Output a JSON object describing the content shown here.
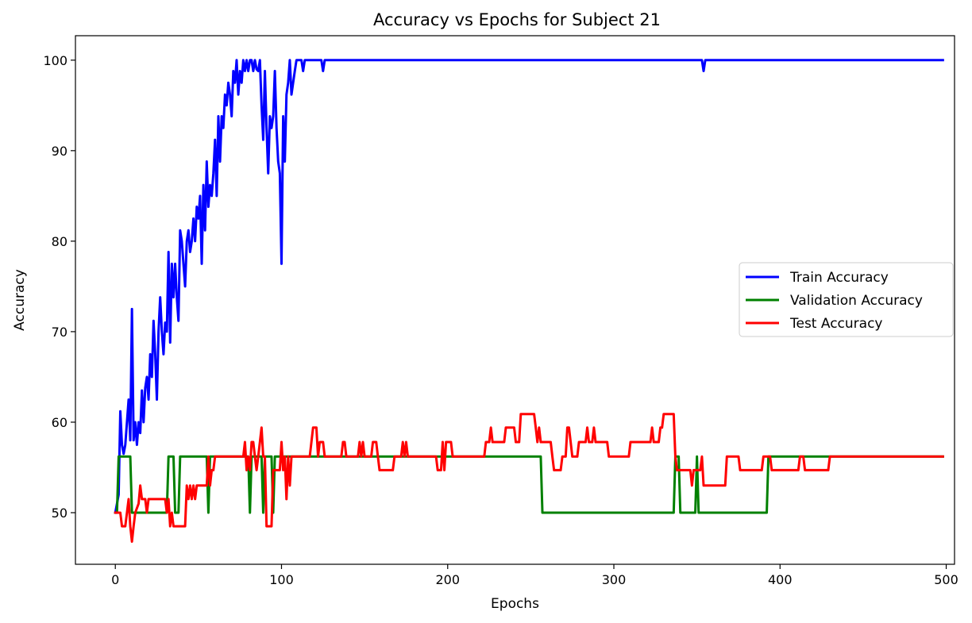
{
  "chart_data": {
    "type": "line",
    "title": "Accuracy vs Epochs for Subject 21",
    "xlabel": "Epochs",
    "ylabel": "Accuracy",
    "xlim": [
      -24,
      505
    ],
    "ylim": [
      44.3,
      102.7
    ],
    "xticks": [
      0,
      100,
      200,
      300,
      400,
      500
    ],
    "yticks": [
      50,
      60,
      70,
      80,
      90,
      100
    ],
    "grid": false,
    "legend_position": "center-right",
    "series": [
      {
        "name": "Train Accuracy",
        "color": "#0000ff",
        "points": [
          [
            0,
            50
          ],
          [
            2,
            52
          ],
          [
            3,
            61.2
          ],
          [
            4,
            57.5
          ],
          [
            5,
            56.5
          ],
          [
            6,
            57.5
          ],
          [
            7,
            60
          ],
          [
            8,
            62.5
          ],
          [
            9,
            58
          ],
          [
            10,
            72.5
          ],
          [
            11,
            58
          ],
          [
            12,
            60
          ],
          [
            13,
            57.5
          ],
          [
            14,
            60
          ],
          [
            15,
            58.8
          ],
          [
            16,
            63.5
          ],
          [
            17,
            60
          ],
          [
            18,
            63.8
          ],
          [
            19,
            65
          ],
          [
            20,
            62.5
          ],
          [
            21,
            67.5
          ],
          [
            22,
            65
          ],
          [
            23,
            71.2
          ],
          [
            24,
            67.5
          ],
          [
            25,
            62.5
          ],
          [
            26,
            70
          ],
          [
            27,
            73.8
          ],
          [
            28,
            70
          ],
          [
            29,
            67.5
          ],
          [
            30,
            71
          ],
          [
            31,
            70
          ],
          [
            32,
            78.8
          ],
          [
            33,
            68.8
          ],
          [
            34,
            77.5
          ],
          [
            35,
            73.8
          ],
          [
            36,
            77.5
          ],
          [
            37,
            73.8
          ],
          [
            38,
            71.2
          ],
          [
            39,
            81.2
          ],
          [
            40,
            80
          ],
          [
            41,
            77.5
          ],
          [
            42,
            75
          ],
          [
            43,
            80
          ],
          [
            44,
            81.2
          ],
          [
            45,
            78.8
          ],
          [
            46,
            80
          ],
          [
            47,
            82.5
          ],
          [
            48,
            80
          ],
          [
            49,
            83.8
          ],
          [
            50,
            82.5
          ],
          [
            51,
            85
          ],
          [
            52,
            77.5
          ],
          [
            53,
            86.2
          ],
          [
            54,
            81.2
          ],
          [
            55,
            88.8
          ],
          [
            56,
            83.8
          ],
          [
            57,
            86.2
          ],
          [
            58,
            85
          ],
          [
            59,
            87.5
          ],
          [
            60,
            91.2
          ],
          [
            61,
            85
          ],
          [
            62,
            93.8
          ],
          [
            63,
            88.8
          ],
          [
            64,
            93.8
          ],
          [
            65,
            92.5
          ],
          [
            66,
            96.2
          ],
          [
            67,
            95
          ],
          [
            68,
            97.5
          ],
          [
            69,
            96.2
          ],
          [
            70,
            93.8
          ],
          [
            71,
            98.8
          ],
          [
            72,
            97.5
          ],
          [
            73,
            100
          ],
          [
            74,
            96.2
          ],
          [
            75,
            98.8
          ],
          [
            76,
            97.5
          ],
          [
            77,
            100
          ],
          [
            78,
            98.8
          ],
          [
            79,
            100
          ],
          [
            80,
            98.8
          ],
          [
            81,
            100
          ],
          [
            82,
            100
          ],
          [
            83,
            98.8
          ],
          [
            84,
            100
          ],
          [
            85,
            99
          ],
          [
            86,
            98.8
          ],
          [
            87,
            100
          ],
          [
            88,
            95
          ],
          [
            89,
            91.2
          ],
          [
            90,
            98.8
          ],
          [
            91,
            92.5
          ],
          [
            92,
            87.5
          ],
          [
            93,
            93.8
          ],
          [
            94,
            92.5
          ],
          [
            95,
            93.8
          ],
          [
            96,
            98.8
          ],
          [
            97,
            92.5
          ],
          [
            98,
            88.8
          ],
          [
            99,
            87.5
          ],
          [
            100,
            77.5
          ],
          [
            101,
            93.8
          ],
          [
            102,
            88.8
          ],
          [
            103,
            96.2
          ],
          [
            104,
            97.5
          ],
          [
            105,
            100
          ],
          [
            106,
            96.2
          ],
          [
            107,
            97.5
          ],
          [
            108,
            98.8
          ],
          [
            109,
            100
          ],
          [
            110,
            100
          ],
          [
            112,
            100
          ],
          [
            113,
            98.8
          ],
          [
            114,
            100
          ],
          [
            124,
            100
          ],
          [
            125,
            98.8
          ],
          [
            126,
            100
          ],
          [
            353,
            100
          ],
          [
            354,
            98.8
          ],
          [
            355,
            100
          ],
          [
            498,
            100
          ]
        ]
      },
      {
        "name": "Validation Accuracy",
        "color": "#008000",
        "points": [
          [
            0,
            50
          ],
          [
            1,
            50
          ],
          [
            2,
            56.2
          ],
          [
            9,
            56.2
          ],
          [
            10,
            50
          ],
          [
            31,
            50
          ],
          [
            32,
            56.2
          ],
          [
            35,
            56.2
          ],
          [
            36,
            50
          ],
          [
            38,
            50
          ],
          [
            39,
            56.2
          ],
          [
            55,
            56.2
          ],
          [
            56,
            50
          ],
          [
            57,
            56.2
          ],
          [
            80,
            56.2
          ],
          [
            81,
            50
          ],
          [
            82,
            56.2
          ],
          [
            88,
            56.2
          ],
          [
            89,
            50
          ],
          [
            90,
            56.2
          ],
          [
            94,
            56.2
          ],
          [
            95,
            50
          ],
          [
            96,
            56.2
          ],
          [
            256,
            56.2
          ],
          [
            257,
            50
          ],
          [
            336,
            50
          ],
          [
            337,
            56.2
          ],
          [
            339,
            56.2
          ],
          [
            340,
            50
          ],
          [
            349,
            50
          ],
          [
            350,
            56.2
          ],
          [
            351,
            50
          ],
          [
            392,
            50
          ],
          [
            393,
            56.2
          ],
          [
            498,
            56.2
          ]
        ]
      },
      {
        "name": "Test Accuracy",
        "color": "#ff0000",
        "points": [
          [
            0,
            50
          ],
          [
            3,
            50
          ],
          [
            4,
            48.5
          ],
          [
            6,
            48.5
          ],
          [
            7,
            50
          ],
          [
            8,
            51.5
          ],
          [
            9,
            48.5
          ],
          [
            10,
            46.8
          ],
          [
            11,
            48.5
          ],
          [
            12,
            50
          ],
          [
            14,
            51
          ],
          [
            15,
            53
          ],
          [
            16,
            51.5
          ],
          [
            18,
            51.5
          ],
          [
            19,
            50
          ],
          [
            20,
            51.5
          ],
          [
            30,
            51.5
          ],
          [
            31,
            50
          ],
          [
            32,
            51.5
          ],
          [
            33,
            48.5
          ],
          [
            34,
            50
          ],
          [
            35,
            48.5
          ],
          [
            42,
            48.5
          ],
          [
            43,
            53
          ],
          [
            44,
            51.5
          ],
          [
            45,
            53
          ],
          [
            46,
            51.5
          ],
          [
            47,
            53
          ],
          [
            48,
            51.5
          ],
          [
            49,
            53
          ],
          [
            55,
            53
          ],
          [
            56,
            56.2
          ],
          [
            57,
            53
          ],
          [
            58,
            54.7
          ],
          [
            59,
            54.7
          ],
          [
            60,
            56.2
          ],
          [
            77,
            56.2
          ],
          [
            78,
            57.8
          ],
          [
            79,
            54.7
          ],
          [
            80,
            56.2
          ],
          [
            81,
            54.7
          ],
          [
            82,
            57.8
          ],
          [
            83,
            57.8
          ],
          [
            84,
            56.2
          ],
          [
            85,
            54.7
          ],
          [
            86,
            56.2
          ],
          [
            87,
            57.8
          ],
          [
            88,
            59.4
          ],
          [
            89,
            56.2
          ],
          [
            90,
            56.2
          ],
          [
            91,
            48.5
          ],
          [
            94,
            48.5
          ],
          [
            95,
            54.7
          ],
          [
            99,
            54.7
          ],
          [
            100,
            57.8
          ],
          [
            101,
            54.7
          ],
          [
            102,
            56.2
          ],
          [
            103,
            51.5
          ],
          [
            104,
            56.2
          ],
          [
            105,
            53
          ],
          [
            106,
            56.2
          ],
          [
            117,
            56.2
          ],
          [
            118,
            57.8
          ],
          [
            119,
            59.4
          ],
          [
            121,
            59.4
          ],
          [
            122,
            56.2
          ],
          [
            123,
            57.8
          ],
          [
            125,
            57.8
          ],
          [
            126,
            56.2
          ],
          [
            136,
            56.2
          ],
          [
            137,
            57.8
          ],
          [
            138,
            57.8
          ],
          [
            139,
            56.2
          ],
          [
            146,
            56.2
          ],
          [
            147,
            57.8
          ],
          [
            148,
            56.2
          ],
          [
            149,
            57.8
          ],
          [
            150,
            56.2
          ],
          [
            154,
            56.2
          ],
          [
            155,
            57.8
          ],
          [
            157,
            57.8
          ],
          [
            158,
            56.2
          ],
          [
            159,
            54.7
          ],
          [
            167,
            54.7
          ],
          [
            168,
            56.2
          ],
          [
            172,
            56.2
          ],
          [
            173,
            57.8
          ],
          [
            174,
            56.2
          ],
          [
            175,
            57.8
          ],
          [
            176,
            56.2
          ],
          [
            193,
            56.2
          ],
          [
            194,
            54.7
          ],
          [
            196,
            54.7
          ],
          [
            197,
            57.8
          ],
          [
            198,
            54.7
          ],
          [
            199,
            57.8
          ],
          [
            202,
            57.8
          ],
          [
            203,
            56.2
          ],
          [
            222,
            56.2
          ],
          [
            223,
            57.8
          ],
          [
            225,
            57.8
          ],
          [
            226,
            59.4
          ],
          [
            227,
            57.8
          ],
          [
            234,
            57.8
          ],
          [
            235,
            59.4
          ],
          [
            240,
            59.4
          ],
          [
            241,
            57.8
          ],
          [
            243,
            57.8
          ],
          [
            244,
            60.9
          ],
          [
            252,
            60.9
          ],
          [
            253,
            59.4
          ],
          [
            254,
            57.8
          ],
          [
            255,
            59.4
          ],
          [
            256,
            57.8
          ],
          [
            262,
            57.8
          ],
          [
            263,
            56.2
          ],
          [
            264,
            54.7
          ],
          [
            268,
            54.7
          ],
          [
            269,
            56.2
          ],
          [
            271,
            56.2
          ],
          [
            272,
            59.4
          ],
          [
            273,
            59.4
          ],
          [
            274,
            57.8
          ],
          [
            275,
            56.2
          ],
          [
            278,
            56.2
          ],
          [
            279,
            57.8
          ],
          [
            283,
            57.8
          ],
          [
            284,
            59.4
          ],
          [
            285,
            57.8
          ],
          [
            287,
            57.8
          ],
          [
            288,
            59.4
          ],
          [
            289,
            57.8
          ],
          [
            296,
            57.8
          ],
          [
            297,
            56.2
          ],
          [
            309,
            56.2
          ],
          [
            310,
            57.8
          ],
          [
            322,
            57.8
          ],
          [
            323,
            59.4
          ],
          [
            324,
            57.8
          ],
          [
            327,
            57.8
          ],
          [
            328,
            59.4
          ],
          [
            329,
            59.4
          ],
          [
            330,
            60.9
          ],
          [
            336,
            60.9
          ],
          [
            337,
            56.2
          ],
          [
            338,
            54.7
          ],
          [
            346,
            54.7
          ],
          [
            347,
            53
          ],
          [
            348,
            54.7
          ],
          [
            352,
            54.7
          ],
          [
            353,
            56.2
          ],
          [
            354,
            53
          ],
          [
            367,
            53
          ],
          [
            368,
            56.2
          ],
          [
            375,
            56.2
          ],
          [
            376,
            54.7
          ],
          [
            389,
            54.7
          ],
          [
            390,
            56.2
          ],
          [
            394,
            56.2
          ],
          [
            395,
            54.7
          ],
          [
            411,
            54.7
          ],
          [
            412,
            56.2
          ],
          [
            414,
            56.2
          ],
          [
            415,
            54.7
          ],
          [
            429,
            54.7
          ],
          [
            430,
            56.2
          ],
          [
            498,
            56.2
          ]
        ]
      }
    ]
  }
}
